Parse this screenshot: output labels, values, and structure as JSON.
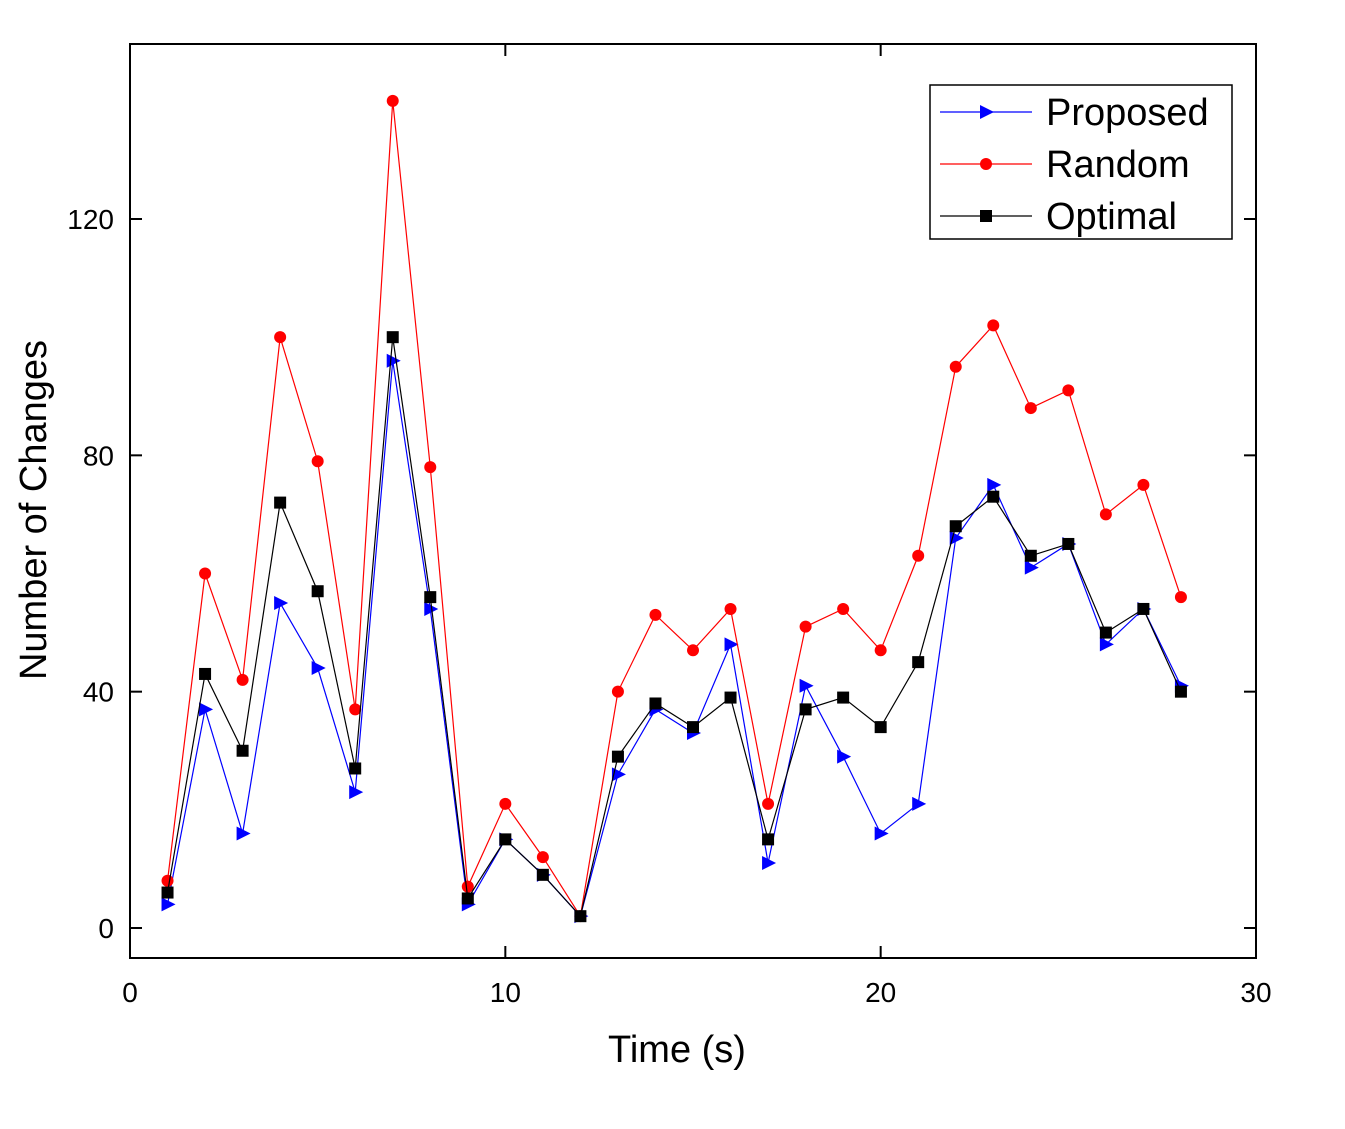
{
  "chart_data": {
    "type": "line",
    "title": "",
    "xlabel": "Time (s)",
    "ylabel": "Number of Changes",
    "xlim": [
      0,
      30
    ],
    "ylim": [
      -5,
      150
    ],
    "xticks": [
      0,
      10,
      20,
      30
    ],
    "yticks": [
      0,
      40,
      80,
      120
    ],
    "grid": false,
    "legend": "top-right",
    "x": [
      1,
      2,
      3,
      4,
      5,
      6,
      7,
      8,
      9,
      10,
      11,
      12,
      13,
      14,
      15,
      16,
      17,
      18,
      19,
      20,
      21,
      22,
      23,
      24,
      25,
      26,
      27,
      28
    ],
    "series": [
      {
        "name": "Proposed",
        "color": "#0000ff",
        "marker": "triangle-right",
        "values": [
          4,
          37,
          16,
          55,
          44,
          23,
          96,
          54,
          4,
          15,
          9,
          2,
          26,
          37,
          33,
          48,
          11,
          41,
          29,
          16,
          21,
          66,
          75,
          61,
          65,
          48,
          54,
          41
        ]
      },
      {
        "name": "Random",
        "color": "#ff0000",
        "marker": "circle",
        "values": [
          8,
          60,
          42,
          100,
          79,
          37,
          140,
          78,
          7,
          21,
          12,
          2,
          40,
          53,
          47,
          54,
          21,
          51,
          54,
          47,
          63,
          95,
          102,
          88,
          91,
          70,
          75,
          56
        ]
      },
      {
        "name": "Optimal",
        "color": "#000000",
        "marker": "square",
        "values": [
          6,
          43,
          30,
          72,
          57,
          27,
          100,
          56,
          5,
          15,
          9,
          2,
          29,
          38,
          34,
          39,
          15,
          37,
          39,
          34,
          45,
          68,
          73,
          63,
          65,
          50,
          54,
          40
        ]
      }
    ]
  }
}
